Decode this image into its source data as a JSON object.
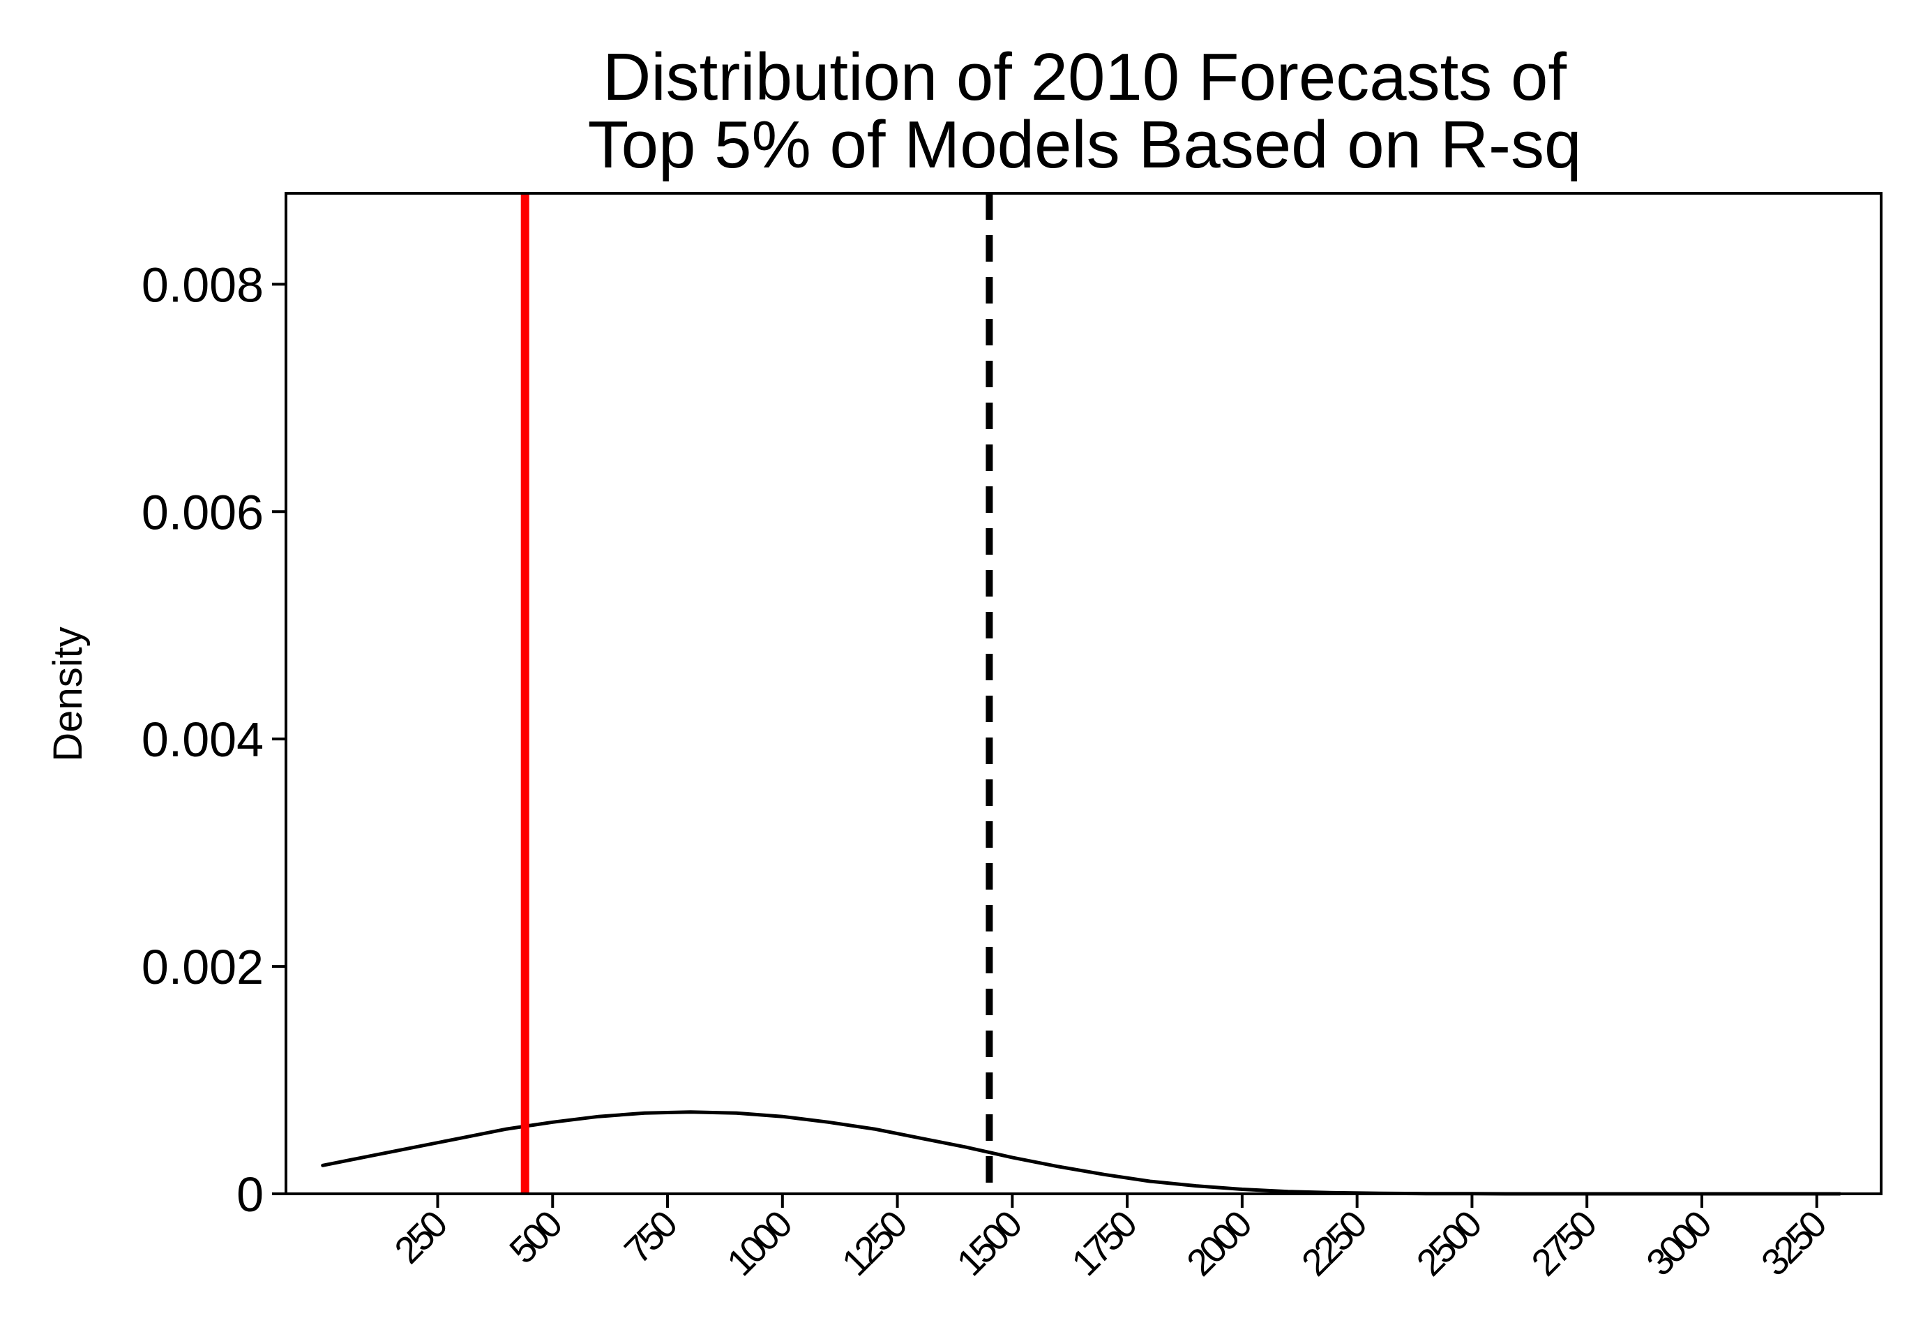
{
  "chart_data": {
    "type": "line",
    "title_lines": [
      "Distribution of 2010 Forecasts of",
      "Top 5% of Models Based on R-sq"
    ],
    "xlabel": "",
    "ylabel": "Density",
    "xlim": [
      -80,
      3390
    ],
    "ylim": [
      0,
      0.0088
    ],
    "x_ticks": [
      250,
      500,
      750,
      1000,
      1250,
      1500,
      1750,
      2000,
      2250,
      2500,
      2750,
      3000,
      3250
    ],
    "x_tick_labels": [
      "250",
      "500",
      "750",
      "1000",
      "1250",
      "1500",
      "1750",
      "2000",
      "2250",
      "2500",
      "2750",
      "3000",
      "3250"
    ],
    "y_ticks": [
      0,
      0.002,
      0.004,
      0.006,
      0.008
    ],
    "y_tick_labels": [
      "0",
      "0.002",
      "0.004",
      "0.006",
      "0.008"
    ],
    "grid": false,
    "series": [
      {
        "x": [
          0,
          100,
          200,
          300,
          400,
          500,
          600,
          700,
          800,
          900,
          1000,
          1100,
          1200,
          1300,
          1400,
          1500,
          1600,
          1700,
          1800,
          1900,
          2000,
          2100,
          2200,
          2300,
          2400,
          2500,
          2600,
          2700,
          2800,
          2900,
          3000,
          3100,
          3200,
          3300
        ],
        "y": [
          0.00025,
          0.00033,
          0.00041,
          0.00049,
          0.00057,
          0.00063,
          0.00068,
          0.00071,
          0.00072,
          0.00071,
          0.00068,
          0.00063,
          0.00057,
          0.00049,
          0.00041,
          0.00032,
          0.00024,
          0.00017,
          0.00011,
          7e-05,
          4e-05,
          2e-05,
          1e-05,
          5e-06,
          2e-06,
          1e-06,
          0,
          0,
          0,
          0,
          0,
          0,
          0,
          0
        ],
        "color": "#000000"
      }
    ],
    "reference_lines": [
      {
        "x": 440,
        "color": "#ff0000",
        "style": "solid"
      },
      {
        "x": 1450,
        "color": "#000000",
        "style": "dashed"
      }
    ]
  }
}
